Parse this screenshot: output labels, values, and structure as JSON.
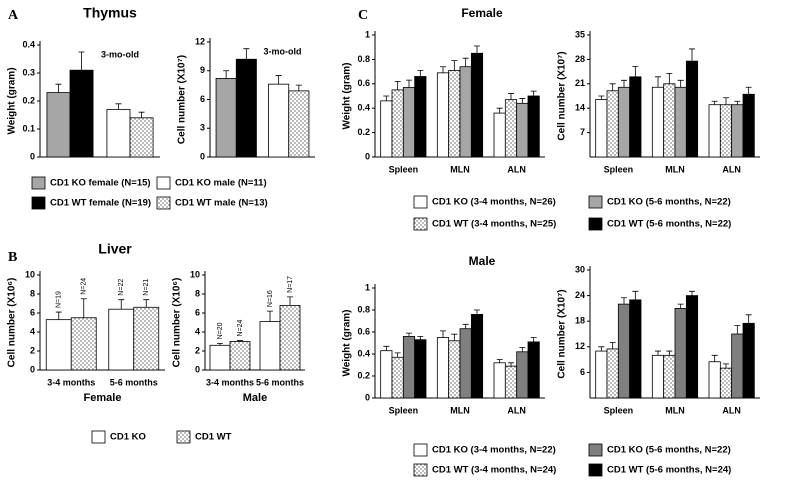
{
  "panels": [
    {
      "label": "A",
      "title": "Thymus"
    },
    {
      "label": "B",
      "title": "Liver"
    },
    {
      "label": "C",
      "title": "Female"
    },
    {
      "title": "Male"
    }
  ],
  "legends": [
    {
      "series": [
        {
          "name": "CD1 KO female (N=15)",
          "color": "#a6a6a6"
        },
        {
          "name": "CD1 WT female (N=19)",
          "color": "#000000"
        },
        {
          "name": "CD1 KO male (N=11)",
          "color": "#ffffff"
        },
        {
          "name": "CD1 WT male (N=13)",
          "color": "#ffffff",
          "pattern": "dots"
        }
      ]
    },
    {
      "series": [
        {
          "name": "CD1 KO",
          "color": "#ffffff"
        },
        {
          "name": "CD1 WT",
          "color": "#ffffff",
          "pattern": "dots"
        }
      ]
    },
    {
      "series": [
        {
          "name": "CD1 KO (3-4 months, N=26)",
          "color": "#ffffff"
        },
        {
          "name": "CD1 WT (3-4 months, N=25)",
          "color": "#ffffff",
          "pattern": "dots"
        },
        {
          "name": "CD1 KO (5-6 months, N=22)",
          "color": "#a6a6a6"
        },
        {
          "name": "CD1 WT (5-6 months, N=22)",
          "color": "#000000"
        }
      ]
    },
    {
      "series": [
        {
          "name": "CD1 KO (3-4 months, N=22)",
          "color": "#ffffff"
        },
        {
          "name": "CD1 WT (3-4 months, N=24)",
          "color": "#ffffff",
          "pattern": "dots"
        },
        {
          "name": "CD1 KO (5-6 months, N=22)",
          "color": "#7f7f7f"
        },
        {
          "name": "CD1 WT (5-6 months, N=24)",
          "color": "#000000"
        }
      ]
    }
  ],
  "chart_data": [
    {
      "type": "bar",
      "ylabel": "Weight (gram)",
      "annotation": "3-mo-old",
      "ylim": [
        0,
        0.4
      ],
      "yticks": [
        0,
        0.1,
        0.2,
        0.3,
        0.4
      ],
      "series": [
        {
          "values": [
            0.23
          ],
          "errors": [
            0.03
          ]
        },
        {
          "values": [
            0.31
          ],
          "errors": [
            0.065
          ]
        },
        {
          "values": [
            0.17
          ],
          "errors": [
            0.02
          ]
        },
        {
          "values": [
            0.14
          ],
          "errors": [
            0.02
          ]
        }
      ]
    },
    {
      "type": "bar",
      "ylabel": "Cell number (X10⁷)",
      "annotation": "3-mo-old",
      "ylim": [
        0,
        12
      ],
      "yticks": [
        0,
        3,
        6,
        9,
        12
      ],
      "series": [
        {
          "values": [
            8.2
          ],
          "errors": [
            0.8
          ]
        },
        {
          "values": [
            10.2
          ],
          "errors": [
            1.1
          ]
        },
        {
          "values": [
            7.6
          ],
          "errors": [
            0.9
          ]
        },
        {
          "values": [
            6.9
          ],
          "errors": [
            0.6
          ]
        }
      ]
    },
    {
      "type": "bar",
      "ylabel": "Cell number (X10⁶)",
      "xlabel": "Female",
      "categories": [
        "3-4 months",
        "5-6 months"
      ],
      "ylim": [
        0,
        10
      ],
      "yticks": [
        0,
        2,
        4,
        6,
        8,
        10
      ],
      "series": [
        {
          "values": [
            5.3,
            6.4
          ],
          "errors": [
            0.8,
            1.0
          ],
          "n_labels": [
            "N=19",
            "N=22"
          ]
        },
        {
          "values": [
            5.5,
            6.6
          ],
          "errors": [
            2.0,
            0.8
          ],
          "n_labels": [
            "N=24",
            "N=21"
          ]
        }
      ]
    },
    {
      "type": "bar",
      "ylabel": "Cell number (X10⁶)",
      "xlabel": "Male",
      "categories": [
        "3-4 months",
        "5-6 months"
      ],
      "ylim": [
        0,
        10
      ],
      "yticks": [
        0,
        2,
        4,
        6,
        8,
        10
      ],
      "series": [
        {
          "values": [
            2.6,
            5.1
          ],
          "errors": [
            0.2,
            1.1
          ],
          "n_labels": [
            "N=20",
            "N=16"
          ]
        },
        {
          "values": [
            3.0,
            6.8
          ],
          "errors": [
            0.1,
            0.9
          ],
          "n_labels": [
            "N=24",
            "N=17"
          ]
        }
      ]
    },
    {
      "type": "bar",
      "ylabel": "Weight (gram)",
      "categories": [
        "Spleen",
        "MLN",
        "ALN"
      ],
      "ylim": [
        0,
        1
      ],
      "yticks": [
        0,
        0.2,
        0.4,
        0.6,
        0.8,
        1
      ],
      "series": [
        {
          "values": [
            0.46,
            0.69,
            0.36
          ],
          "errors": [
            0.04,
            0.05,
            0.04
          ]
        },
        {
          "values": [
            0.55,
            0.71,
            0.47
          ],
          "errors": [
            0.07,
            0.08,
            0.05
          ]
        },
        {
          "values": [
            0.57,
            0.74,
            0.44
          ],
          "errors": [
            0.06,
            0.07,
            0.04
          ]
        },
        {
          "values": [
            0.66,
            0.85,
            0.5
          ],
          "errors": [
            0.05,
            0.06,
            0.04
          ]
        }
      ]
    },
    {
      "type": "bar",
      "ylabel": "Cell number (X10⁷)",
      "categories": [
        "Spleen",
        "MLN",
        "ALN"
      ],
      "ylim": [
        0,
        35
      ],
      "yticks": [
        7,
        14,
        21,
        28,
        35
      ],
      "series": [
        {
          "values": [
            16.5,
            20,
            15
          ],
          "errors": [
            1,
            3,
            1
          ]
        },
        {
          "values": [
            19,
            21,
            15
          ],
          "errors": [
            2,
            3,
            2
          ]
        },
        {
          "values": [
            20,
            20,
            15
          ],
          "errors": [
            2,
            2,
            1
          ]
        },
        {
          "values": [
            23,
            27.5,
            18
          ],
          "errors": [
            3,
            3.5,
            2
          ]
        }
      ]
    },
    {
      "type": "bar",
      "ylabel": "Weight (gram)",
      "categories": [
        "Spleen",
        "MLN",
        "ALN"
      ],
      "ylim": [
        0,
        1
      ],
      "yticks": [
        0,
        0.2,
        0.4,
        0.6,
        0.8,
        1
      ],
      "series": [
        {
          "values": [
            0.43,
            0.55,
            0.32
          ],
          "errors": [
            0.04,
            0.06,
            0.03
          ]
        },
        {
          "values": [
            0.37,
            0.52,
            0.29
          ],
          "errors": [
            0.04,
            0.06,
            0.03
          ]
        },
        {
          "values": [
            0.56,
            0.63,
            0.42
          ],
          "errors": [
            0.03,
            0.04,
            0.04
          ]
        },
        {
          "values": [
            0.53,
            0.76,
            0.51
          ],
          "errors": [
            0.03,
            0.04,
            0.04
          ]
        }
      ]
    },
    {
      "type": "bar",
      "ylabel": "Cell number (X10⁷)",
      "categories": [
        "Spleen",
        "MLN",
        "ALN"
      ],
      "ylim": [
        0,
        30
      ],
      "yticks": [
        6,
        12,
        18,
        24,
        30
      ],
      "series": [
        {
          "values": [
            11,
            10,
            8.5
          ],
          "errors": [
            1,
            1,
            1.5
          ]
        },
        {
          "values": [
            11.5,
            10,
            7
          ],
          "errors": [
            1.5,
            1,
            1
          ]
        },
        {
          "values": [
            22,
            21,
            15
          ],
          "errors": [
            1.5,
            1,
            2
          ]
        },
        {
          "values": [
            23,
            24,
            17.5
          ],
          "errors": [
            2,
            1,
            2
          ]
        }
      ]
    }
  ]
}
